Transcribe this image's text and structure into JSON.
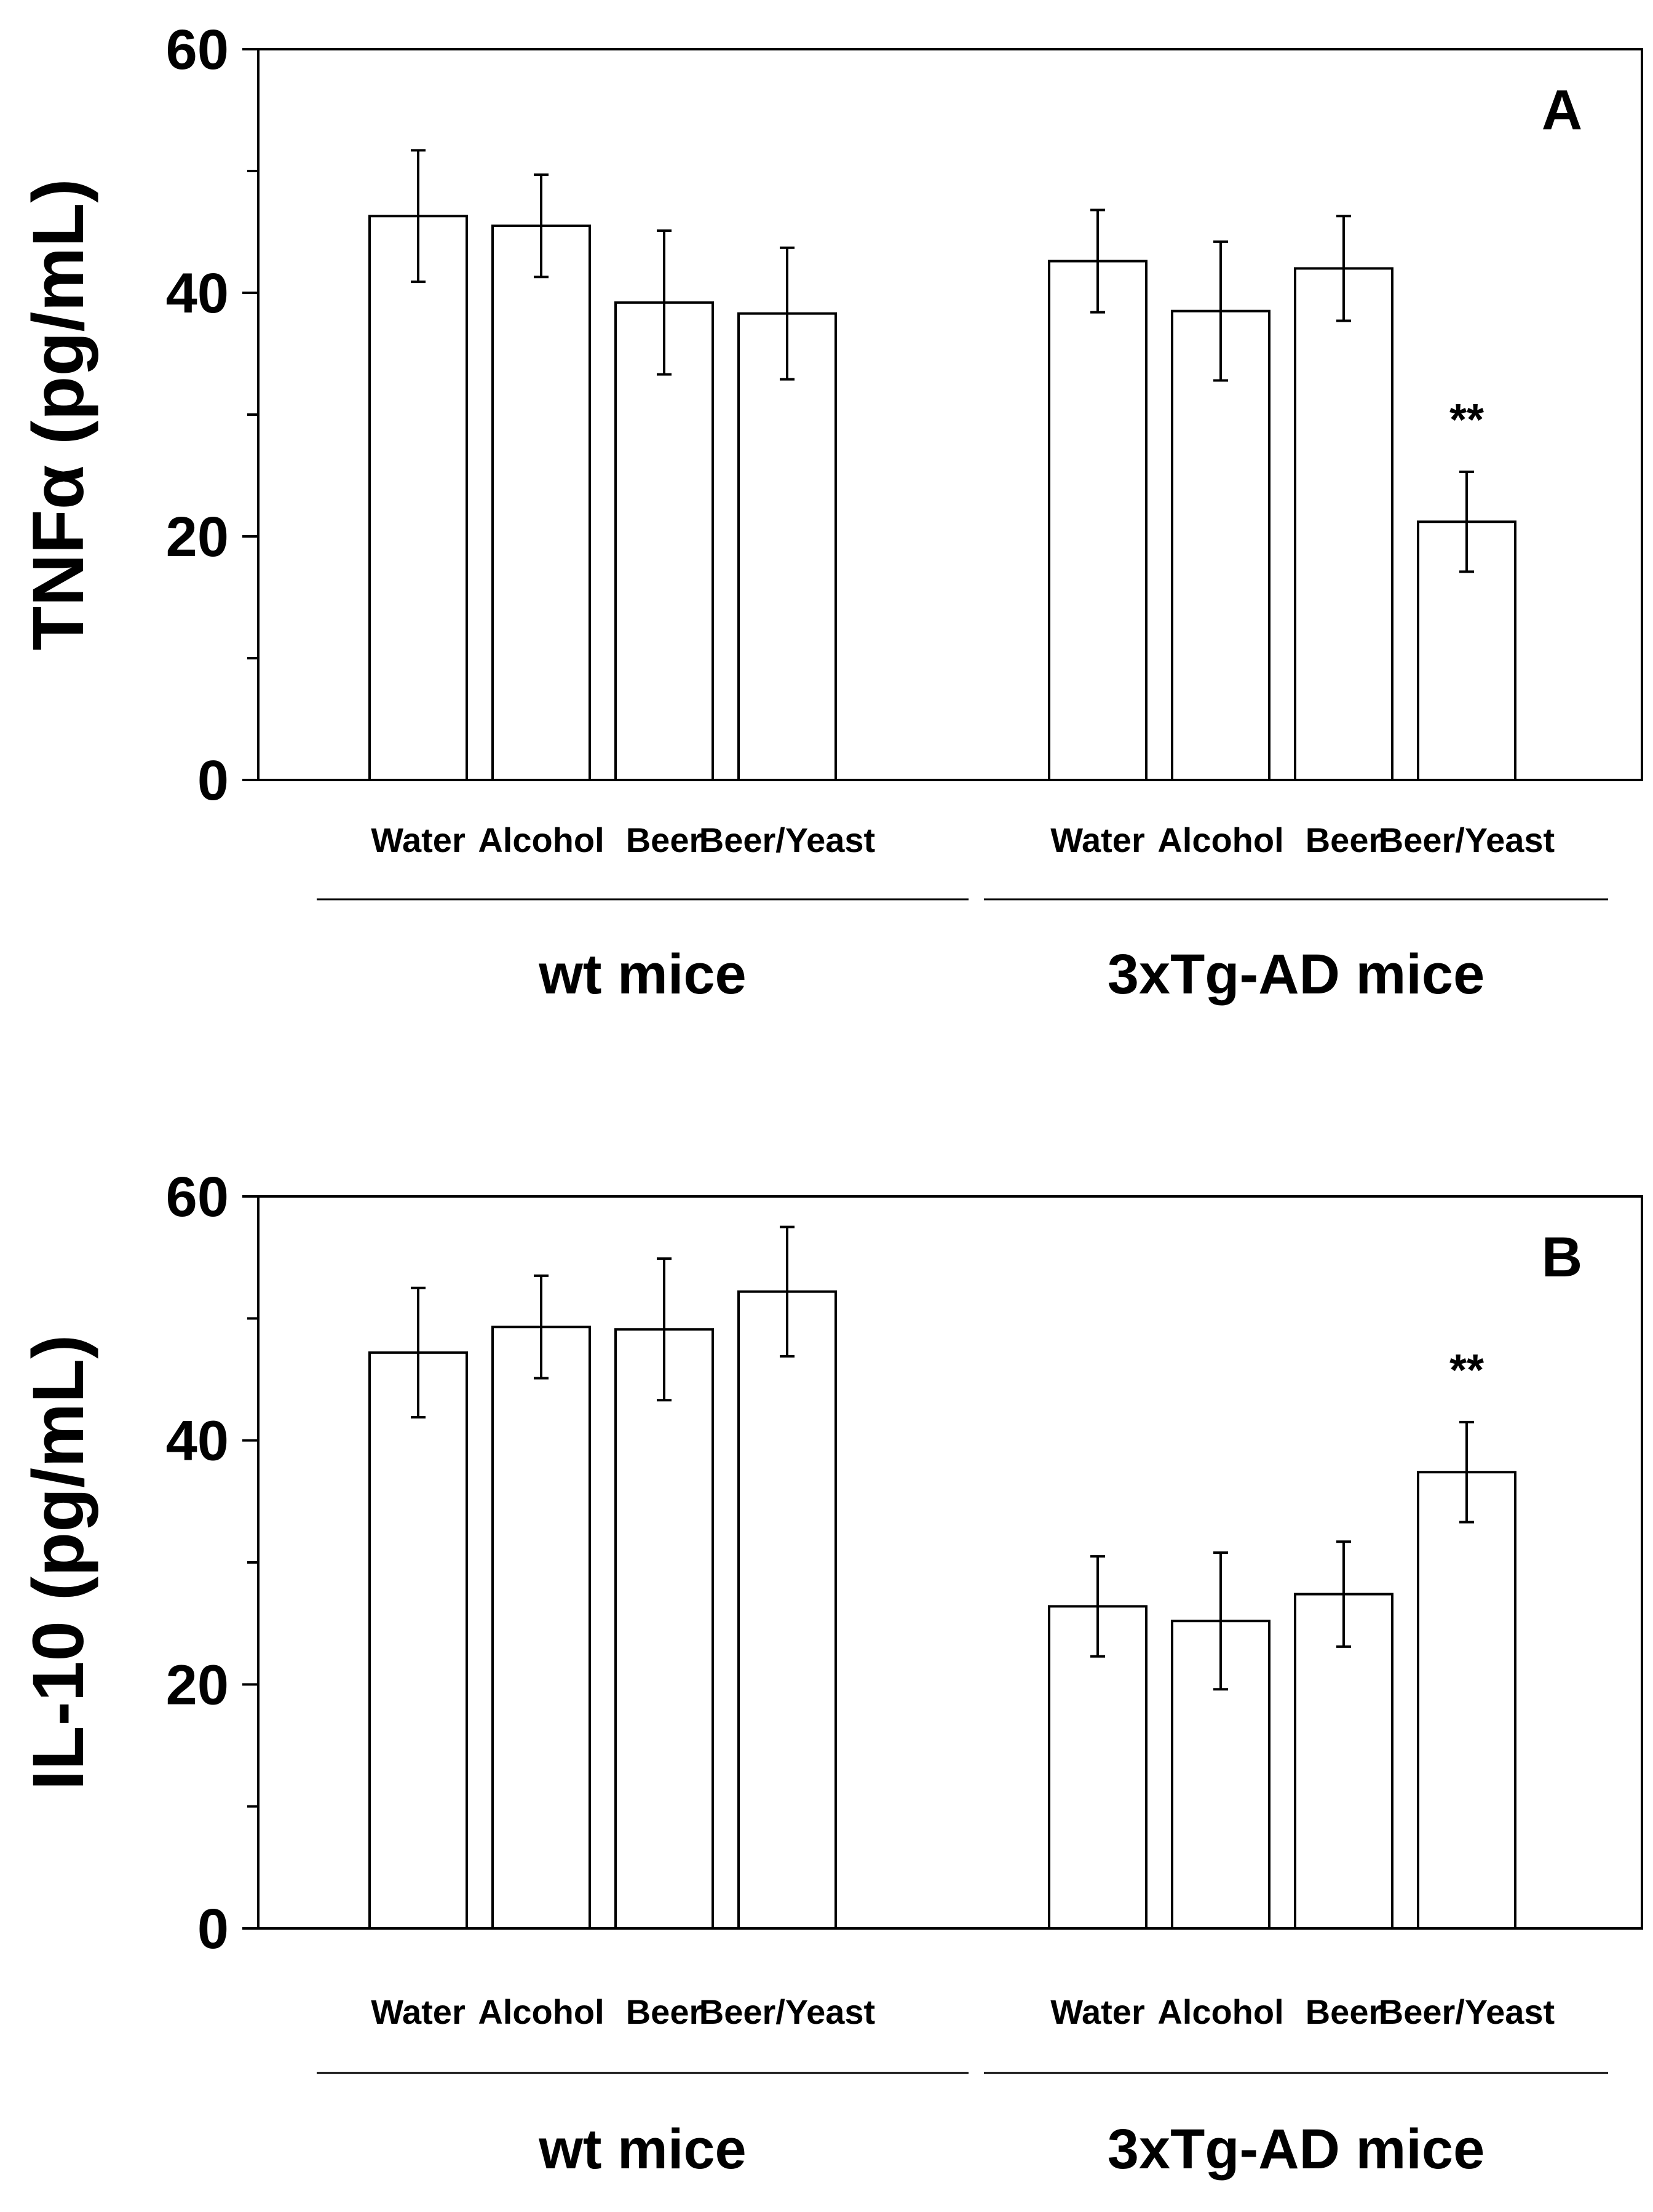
{
  "chart_data": [
    {
      "type": "bar",
      "panel_label": "A",
      "ylabel": "TNFα (pg/mL)",
      "ylim": [
        0,
        60
      ],
      "yticks": [
        "0",
        "20",
        "40",
        "60"
      ],
      "grid": false,
      "groups": [
        {
          "name": "wt mice",
          "categories": [
            "Water",
            "Alcohol",
            "Beer",
            "Beer/Yeast"
          ],
          "values": [
            46.3,
            45.5,
            39.2,
            38.3
          ],
          "errors": [
            5.4,
            4.2,
            5.9,
            5.4
          ],
          "significance": [
            "",
            "",
            "",
            ""
          ]
        },
        {
          "name": "3xTg-AD mice",
          "categories": [
            "Water",
            "Alcohol",
            "Beer",
            "Beer/Yeast"
          ],
          "values": [
            42.6,
            38.5,
            42.0,
            21.2
          ],
          "errors": [
            4.2,
            5.7,
            4.3,
            4.1
          ],
          "significance": [
            "",
            "",
            "",
            "**"
          ]
        }
      ]
    },
    {
      "type": "bar",
      "panel_label": "B",
      "ylabel": "IL-10 (pg/mL)",
      "ylim": [
        0,
        60
      ],
      "yticks": [
        "0",
        "20",
        "40",
        "60"
      ],
      "grid": false,
      "groups": [
        {
          "name": "wt mice",
          "categories": [
            "Water",
            "Alcohol",
            "Beer",
            "Beer/Yeast"
          ],
          "values": [
            47.2,
            49.3,
            49.1,
            52.2
          ],
          "errors": [
            5.3,
            4.2,
            5.8,
            5.3
          ],
          "significance": [
            "",
            "",
            "",
            ""
          ]
        },
        {
          "name": "3xTg-AD mice",
          "categories": [
            "Water",
            "Alcohol",
            "Beer",
            "Beer/Yeast"
          ],
          "values": [
            26.4,
            25.2,
            27.4,
            37.4
          ],
          "errors": [
            4.1,
            5.6,
            4.3,
            4.1
          ],
          "significance": [
            "",
            "",
            "",
            "**"
          ]
        }
      ]
    }
  ]
}
